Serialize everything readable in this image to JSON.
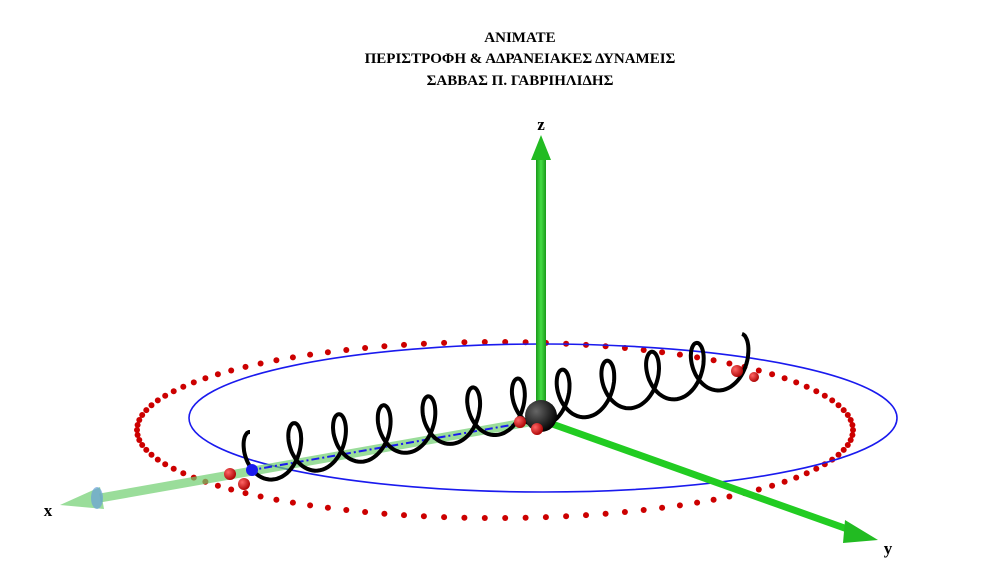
{
  "header": {
    "title_lines": [
      "ANIMATE",
      "ΠΕΡΙΣΤΡΟΦΗ & ΑΔΡΑΝΕΙΑΚΕΣ ΔΥΝΑΜΕΙΣ",
      "ΣΑΒΒΑΣ Π. ΓΑΒΡΙΗΛΙΔΗΣ"
    ]
  },
  "axes": {
    "x": "x",
    "y": "y",
    "z": "z"
  }
}
